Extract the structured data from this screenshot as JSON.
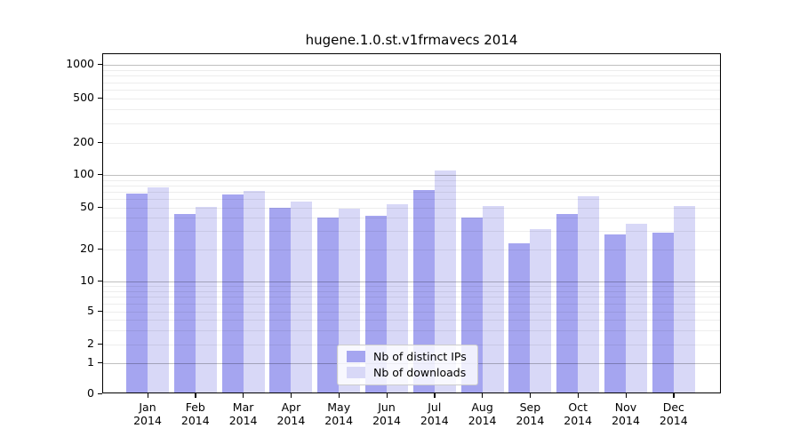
{
  "title": "hugene.1.0.st.v1frmavecs 2014",
  "chart_data": {
    "type": "bar",
    "title": "hugene.1.0.st.v1frmavecs 2014",
    "categories": [
      "Jan",
      "Feb",
      "Mar",
      "Apr",
      "May",
      "Jun",
      "Jul",
      "Aug",
      "Sep",
      "Oct",
      "Nov",
      "Dec"
    ],
    "year": "2014",
    "series": [
      {
        "name": "Nb of distinct IPs",
        "color": "#a5a5f0",
        "values": [
          65,
          42,
          64,
          48,
          39,
          40,
          70,
          39,
          22,
          42,
          27,
          28
        ]
      },
      {
        "name": "Nb of downloads",
        "color": "#d8d8f7",
        "values": [
          74,
          49,
          69,
          55,
          47,
          52,
          107,
          50,
          30,
          62,
          34,
          50
        ]
      }
    ],
    "y_ticks": [
      0,
      1,
      2,
      5,
      10,
      20,
      50,
      100,
      200,
      500,
      1000
    ],
    "y_scale": "log-like with compressed 0-5 region",
    "xlabel": "",
    "ylabel": "",
    "grid": "major and minor horizontal gridlines drawn over bars",
    "legend_position": "bottom-center"
  },
  "legend": {
    "items": [
      {
        "label": "Nb of distinct IPs",
        "color": "#a5a5f0"
      },
      {
        "label": "Nb of downloads",
        "color": "#d8d8f7"
      }
    ]
  },
  "colors": {
    "ips_bar": "#a5a5f0",
    "downloads_bar": "#d8d8f7",
    "frame": "#000000",
    "major_grid": "rgba(0,0,0,0.25)",
    "minor_grid": "rgba(0,0,0,0.07)"
  }
}
